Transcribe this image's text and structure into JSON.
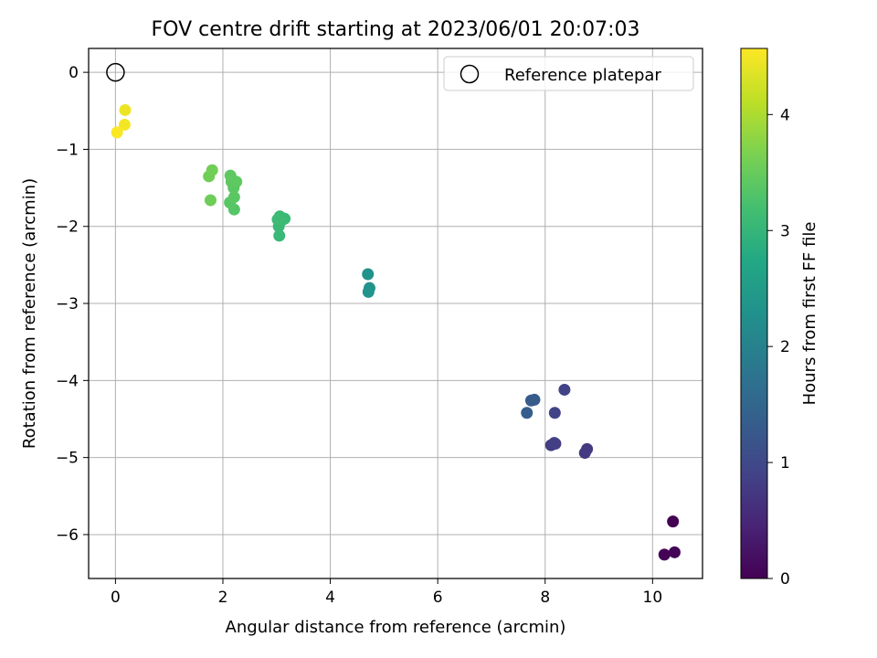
{
  "chart_data": {
    "type": "scatter",
    "title": "FOV centre drift starting at 2023/06/01 20:07:03",
    "xlabel": "Angular distance from reference (arcmin)",
    "ylabel": "Rotation from reference (arcmin)",
    "xlim": [
      -0.5,
      10.93
    ],
    "ylim": [
      -6.57,
      0.31
    ],
    "xticks": [
      0,
      2,
      4,
      6,
      8,
      10
    ],
    "yticks": [
      0,
      -1,
      -2,
      -3,
      -4,
      -5,
      -6
    ],
    "grid": true,
    "legend": {
      "placement": "top-right",
      "entries": [
        "Reference platepar"
      ]
    },
    "reference_point": {
      "name": "Reference platepar",
      "x": 0,
      "y": 0
    },
    "colorbar": {
      "label": "Hours from first FF file",
      "range": [
        0,
        4.57
      ],
      "ticks": [
        0,
        1,
        2,
        3,
        4
      ],
      "colormap": "viridis"
    },
    "points": [
      {
        "x": 10.38,
        "y": -5.83,
        "c": 0.0
      },
      {
        "x": 10.22,
        "y": -6.26,
        "c": 0.02
      },
      {
        "x": 10.41,
        "y": -6.23,
        "c": 0.05
      },
      {
        "x": 8.74,
        "y": -4.94,
        "c": 0.75
      },
      {
        "x": 8.78,
        "y": -4.89,
        "c": 0.77
      },
      {
        "x": 8.11,
        "y": -4.84,
        "c": 0.8
      },
      {
        "x": 8.19,
        "y": -4.82,
        "c": 0.82
      },
      {
        "x": 8.17,
        "y": -4.81,
        "c": 0.84
      },
      {
        "x": 8.36,
        "y": -4.12,
        "c": 0.88
      },
      {
        "x": 8.18,
        "y": -4.42,
        "c": 0.92
      },
      {
        "x": 7.74,
        "y": -4.26,
        "c": 1.3
      },
      {
        "x": 7.8,
        "y": -4.25,
        "c": 1.32
      },
      {
        "x": 7.66,
        "y": -4.42,
        "c": 1.35
      },
      {
        "x": 4.7,
        "y": -2.62,
        "c": 2.3
      },
      {
        "x": 4.73,
        "y": -2.8,
        "c": 2.32
      },
      {
        "x": 4.71,
        "y": -2.85,
        "c": 2.34
      },
      {
        "x": 3.05,
        "y": -2.12,
        "c": 3.05
      },
      {
        "x": 3.04,
        "y": -2.0,
        "c": 3.06
      },
      {
        "x": 3.06,
        "y": -1.87,
        "c": 3.07
      },
      {
        "x": 3.1,
        "y": -1.92,
        "c": 3.08
      },
      {
        "x": 3.15,
        "y": -1.9,
        "c": 3.09
      },
      {
        "x": 3.02,
        "y": -1.91,
        "c": 3.1
      },
      {
        "x": 2.21,
        "y": -1.78,
        "c": 3.35
      },
      {
        "x": 2.13,
        "y": -1.69,
        "c": 3.37
      },
      {
        "x": 2.21,
        "y": -1.62,
        "c": 3.39
      },
      {
        "x": 2.2,
        "y": -1.5,
        "c": 3.4
      },
      {
        "x": 2.16,
        "y": -1.42,
        "c": 3.41
      },
      {
        "x": 2.25,
        "y": -1.42,
        "c": 3.42
      },
      {
        "x": 2.14,
        "y": -1.34,
        "c": 3.43
      },
      {
        "x": 1.77,
        "y": -1.66,
        "c": 3.55
      },
      {
        "x": 1.74,
        "y": -1.35,
        "c": 3.57
      },
      {
        "x": 1.8,
        "y": -1.27,
        "c": 3.58
      },
      {
        "x": 0.18,
        "y": -0.49,
        "c": 4.45
      },
      {
        "x": 0.17,
        "y": -0.68,
        "c": 4.5
      },
      {
        "x": 0.03,
        "y": -0.78,
        "c": 4.55
      }
    ]
  }
}
